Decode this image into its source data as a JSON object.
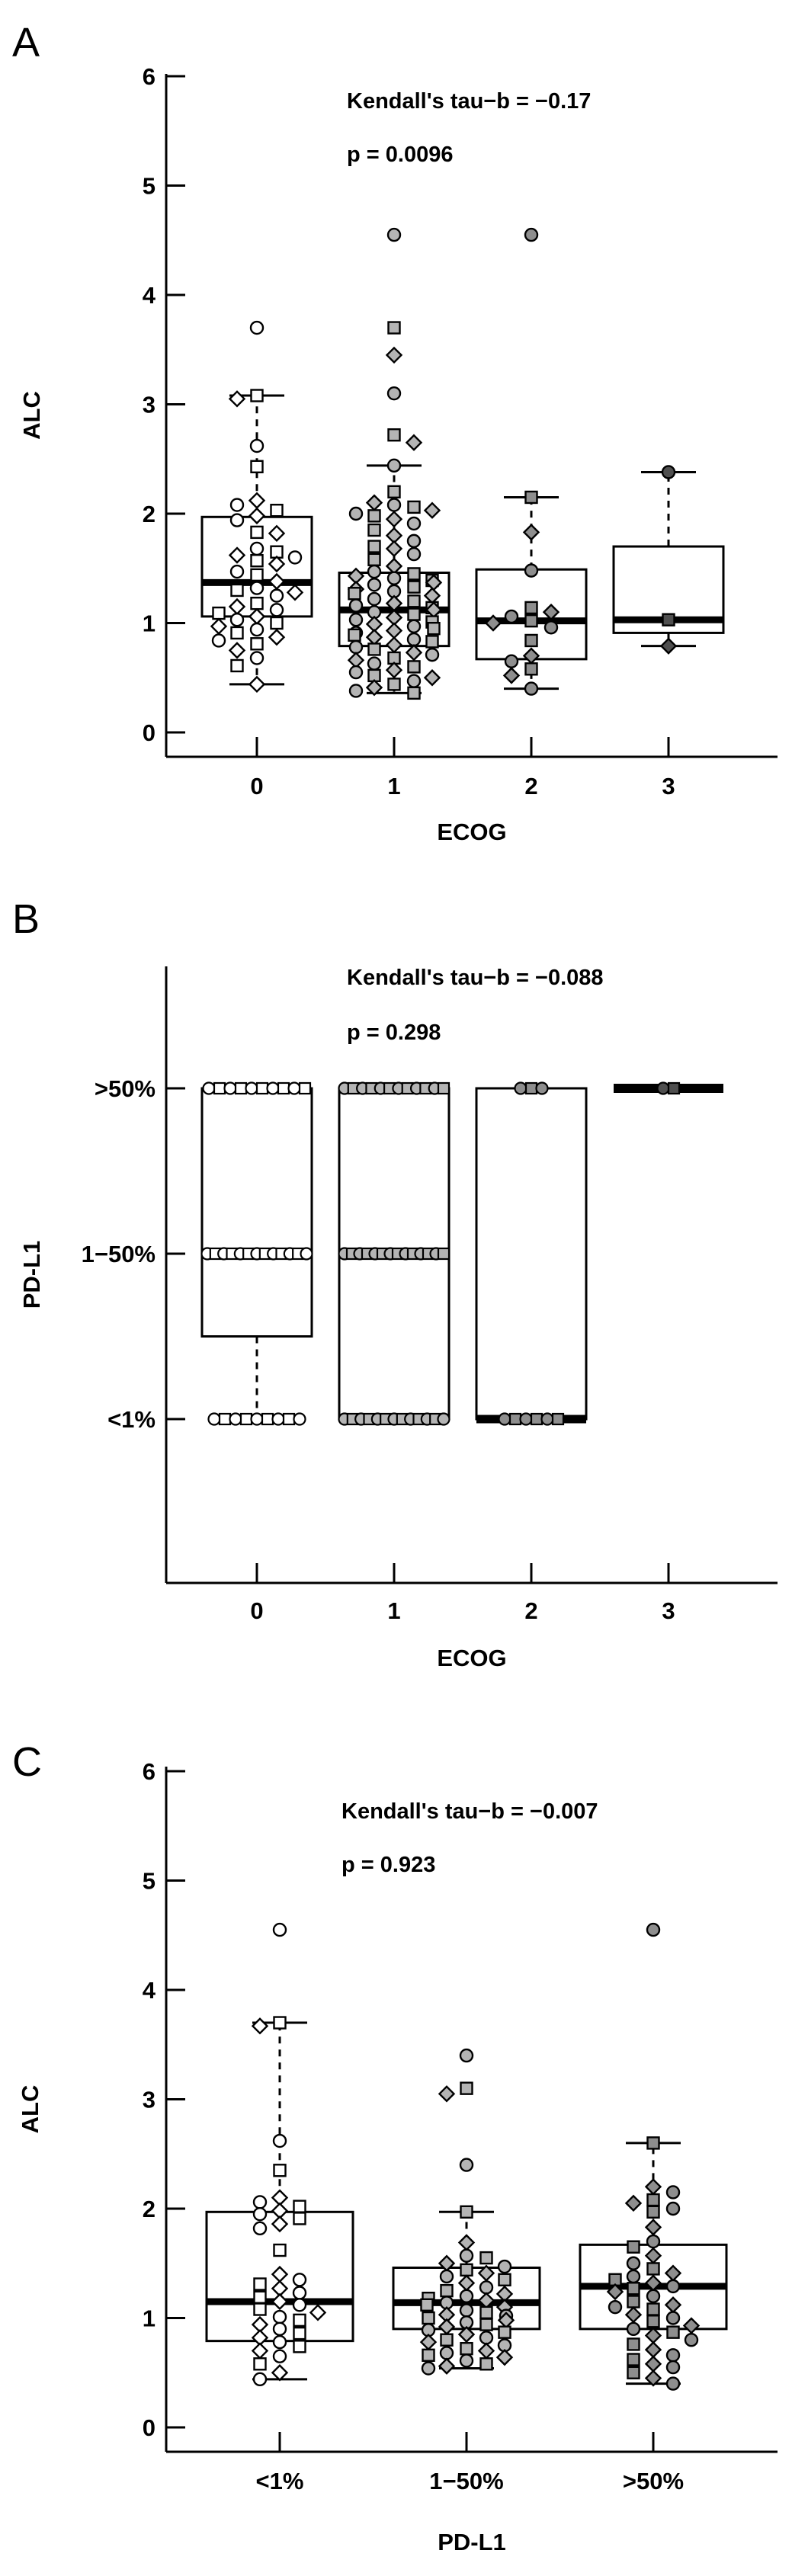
{
  "chart_data": [
    {
      "type": "boxplot-jitter",
      "panel_label": "A",
      "annotations": [
        "Kendall's tau−b = −0.17",
        "p = 0.0096"
      ],
      "xlabel": "ECOG",
      "ylabel": "ALC",
      "ylim": [
        0,
        6
      ],
      "yticks": [
        0,
        1,
        2,
        3,
        4,
        5,
        6
      ],
      "categories": [
        "0",
        "1",
        "2",
        "3"
      ],
      "legend": "none",
      "grid": false,
      "groups": [
        {
          "category": "0",
          "marker_fill": "#ffffff",
          "n": 42,
          "box": {
            "q1": 1.06,
            "median": 1.37,
            "q3": 1.97,
            "whisker_low": 0.44,
            "whisker_high": 3.08
          },
          "outliers": [
            3.7
          ],
          "values": [
            3.7,
            3.08,
            3.05,
            2.62,
            2.43,
            2.12,
            2.08,
            2.03,
            1.98,
            1.94,
            1.83,
            1.82,
            1.68,
            1.65,
            1.62,
            1.6,
            1.57,
            1.54,
            1.47,
            1.44,
            1.38,
            1.32,
            1.3,
            1.28,
            1.25,
            1.18,
            1.15,
            1.12,
            1.09,
            1.06,
            1.03,
            1.0,
            0.97,
            0.94,
            0.91,
            0.87,
            0.84,
            0.81,
            0.75,
            0.68,
            0.61,
            0.44
          ]
        },
        {
          "category": "1",
          "marker_fill": "#b4b4b4",
          "n": 74,
          "box": {
            "q1": 0.79,
            "median": 1.12,
            "q3": 1.46,
            "whisker_low": 0.36,
            "whisker_high": 2.44
          },
          "outliers": [
            4.55,
            3.7,
            3.45,
            3.1,
            2.72,
            2.65
          ],
          "values": [
            4.55,
            3.7,
            3.45,
            3.1,
            2.72,
            2.65,
            2.44,
            2.2,
            2.1,
            2.08,
            2.06,
            2.03,
            2.0,
            1.98,
            1.95,
            1.91,
            1.85,
            1.8,
            1.75,
            1.7,
            1.68,
            1.63,
            1.58,
            1.52,
            1.47,
            1.45,
            1.43,
            1.41,
            1.39,
            1.37,
            1.35,
            1.33,
            1.31,
            1.29,
            1.27,
            1.25,
            1.22,
            1.2,
            1.18,
            1.16,
            1.14,
            1.12,
            1.1,
            1.08,
            1.05,
            1.03,
            1.01,
            0.99,
            0.97,
            0.95,
            0.93,
            0.91,
            0.89,
            0.87,
            0.85,
            0.83,
            0.8,
            0.78,
            0.76,
            0.73,
            0.71,
            0.68,
            0.66,
            0.63,
            0.6,
            0.57,
            0.55,
            0.52,
            0.5,
            0.47,
            0.44,
            0.41,
            0.38,
            0.36
          ]
        },
        {
          "category": "2",
          "marker_fill": "#8e8e8e",
          "n": 16,
          "box": {
            "q1": 0.67,
            "median": 1.02,
            "q3": 1.49,
            "whisker_low": 0.4,
            "whisker_high": 2.15
          },
          "outliers": [
            4.55
          ],
          "values": [
            4.55,
            2.15,
            1.83,
            1.48,
            1.14,
            1.1,
            1.06,
            1.02,
            1.0,
            0.96,
            0.84,
            0.7,
            0.65,
            0.58,
            0.52,
            0.4
          ]
        },
        {
          "category": "3",
          "marker_fill": "#4f4f4f",
          "n": 3,
          "box": {
            "q1": 0.91,
            "median": 1.03,
            "q3": 1.7,
            "whisker_low": 0.79,
            "whisker_high": 2.38
          },
          "outliers": [],
          "values": [
            2.38,
            1.03,
            0.79
          ]
        }
      ]
    },
    {
      "type": "boxplot-categorical",
      "panel_label": "B",
      "annotations": [
        "Kendall's tau−b = −0.088",
        "p = 0.298"
      ],
      "xlabel": "ECOG",
      "ylabel": "PD-L1",
      "ylevels": [
        {
          "level": 1,
          "label": "<1%"
        },
        {
          "level": 2,
          "label": "1−50%"
        },
        {
          "level": 3,
          "label": ">50%"
        }
      ],
      "categories": [
        "0",
        "1",
        "2",
        "3"
      ],
      "legend": "none",
      "grid": false,
      "groups": [
        {
          "category": "0",
          "marker_fill": "#ffffff",
          "box": {
            "q1": 1.5,
            "median": 2,
            "q3": 3,
            "whisker_low": 1
          },
          "rows": [
            {
              "level": 3,
              "count": 10
            },
            {
              "level": 2,
              "count": 13
            },
            {
              "level": 1,
              "count": 9
            }
          ]
        },
        {
          "category": "1",
          "marker_fill": "#b4b4b4",
          "box": {
            "q1": 1,
            "median": 2,
            "q3": 3
          },
          "rows": [
            {
              "level": 3,
              "count": 12
            },
            {
              "level": 2,
              "count": 14
            },
            {
              "level": 1,
              "count": 13
            }
          ]
        },
        {
          "category": "2",
          "marker_fill": "#8e8e8e",
          "box": {
            "q1": 1,
            "median": 1,
            "q3": 3
          },
          "rows": [
            {
              "level": 3,
              "count": 3
            },
            {
              "level": 1,
              "count": 6
            }
          ]
        },
        {
          "category": "3",
          "marker_fill": "#4f4f4f",
          "box": {
            "q1": 3,
            "median": 3,
            "q3": 3
          },
          "rows": [
            {
              "level": 3,
              "count": 2
            }
          ]
        }
      ]
    },
    {
      "type": "boxplot-jitter",
      "panel_label": "C",
      "annotations": [
        "Kendall's tau−b = −0.007",
        "p = 0.923"
      ],
      "xlabel": "PD-L1",
      "ylabel": "ALC",
      "ylim": [
        0,
        6
      ],
      "yticks": [
        0,
        1,
        2,
        3,
        4,
        5,
        6
      ],
      "categories": [
        "<1%",
        "1−50%",
        ">50%"
      ],
      "legend": "none",
      "grid": false,
      "groups": [
        {
          "category": "<1%",
          "marker_fill": "#ffffff",
          "n": 37,
          "box": {
            "q1": 0.79,
            "median": 1.15,
            "q3": 1.97,
            "whisker_low": 0.44,
            "whisker_high": 3.7
          },
          "outliers": [
            4.55
          ],
          "values": [
            4.55,
            3.7,
            3.67,
            2.62,
            2.35,
            2.1,
            2.06,
            2.02,
            1.98,
            1.95,
            1.91,
            1.86,
            1.82,
            1.62,
            1.4,
            1.35,
            1.31,
            1.27,
            1.23,
            1.19,
            1.15,
            1.12,
            1.08,
            1.05,
            1.01,
            0.98,
            0.94,
            0.9,
            0.86,
            0.82,
            0.78,
            0.74,
            0.7,
            0.65,
            0.58,
            0.5,
            0.44
          ]
        },
        {
          "category": "1−50%",
          "marker_fill": "#b4b4b4",
          "n": 49,
          "box": {
            "q1": 0.9,
            "median": 1.14,
            "q3": 1.46,
            "whisker_low": 0.54,
            "whisker_high": 1.97
          },
          "outliers": [
            3.4,
            3.1,
            3.05,
            2.4
          ],
          "values": [
            3.4,
            3.1,
            3.05,
            2.4,
            1.97,
            1.69,
            1.57,
            1.55,
            1.5,
            1.47,
            1.44,
            1.41,
            1.38,
            1.35,
            1.32,
            1.28,
            1.25,
            1.22,
            1.2,
            1.18,
            1.16,
            1.14,
            1.12,
            1.1,
            1.07,
            1.05,
            1.03,
            1.02,
            1.0,
            0.98,
            0.96,
            0.94,
            0.92,
            0.89,
            0.87,
            0.85,
            0.82,
            0.8,
            0.78,
            0.75,
            0.72,
            0.7,
            0.68,
            0.66,
            0.64,
            0.61,
            0.58,
            0.56,
            0.54
          ]
        },
        {
          "category": ">50%",
          "marker_fill": "#8e8e8e",
          "n": 43,
          "box": {
            "q1": 0.9,
            "median": 1.29,
            "q3": 1.67,
            "whisker_low": 0.4,
            "whisker_high": 2.6
          },
          "outliers": [
            4.55
          ],
          "values": [
            4.55,
            2.6,
            2.2,
            2.15,
            2.08,
            2.05,
            2.0,
            1.97,
            1.83,
            1.7,
            1.65,
            1.57,
            1.5,
            1.45,
            1.41,
            1.38,
            1.35,
            1.32,
            1.29,
            1.27,
            1.24,
            1.2,
            1.15,
            1.12,
            1.1,
            1.08,
            1.03,
            1.0,
            0.97,
            0.93,
            0.9,
            0.87,
            0.84,
            0.8,
            0.76,
            0.71,
            0.66,
            0.62,
            0.58,
            0.55,
            0.5,
            0.45,
            0.4
          ]
        }
      ]
    }
  ]
}
